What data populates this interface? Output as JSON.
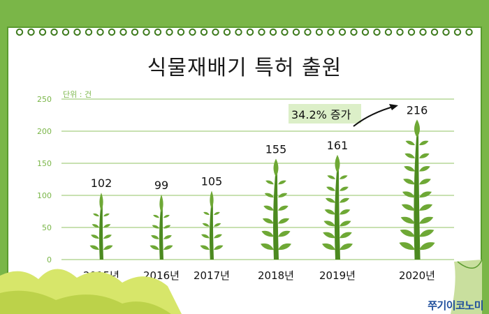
{
  "chart_data": {
    "type": "bar",
    "title": "식물재배기 특허 출원",
    "unit_label": "단위 : 건",
    "categories": [
      "2015년",
      "2016년",
      "2017년",
      "2018년",
      "2019년",
      "2020년"
    ],
    "values": [
      102,
      99,
      105,
      155,
      161,
      216
    ],
    "yticks": [
      "0",
      "50",
      "100",
      "150",
      "200",
      "250"
    ],
    "ylim": [
      0,
      250
    ],
    "grid": true,
    "annotation": "34.2% 증가",
    "colors": {
      "plant": "#6ea835",
      "plant_dark": "#4c8a20",
      "grid": "#a8cf82",
      "tick_label": "#7ab648"
    }
  },
  "brand": "쭈기이코노미"
}
